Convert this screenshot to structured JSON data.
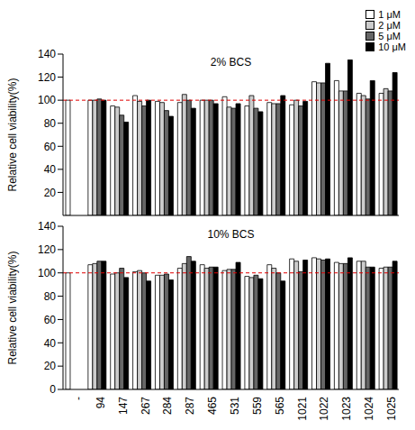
{
  "chart_data": [
    {
      "type": "bar",
      "title": "2% BCS",
      "y_label": "Relative cell viability(%)",
      "categories": [
        "-",
        "94",
        "147",
        "267",
        "284",
        "287",
        "465",
        "531",
        "559",
        "565",
        "1021",
        "1022",
        "1023",
        "1024",
        "1025"
      ],
      "series": [
        {
          "name": "1 μM",
          "color": "#ffffff",
          "values": [
            100,
            100,
            95,
            104,
            99,
            98,
            100,
            103,
            95,
            98,
            96,
            116,
            117,
            106,
            106
          ]
        },
        {
          "name": "2 μM",
          "color": "#cccccc",
          "values": [
            null,
            100,
            94,
            99,
            98,
            105,
            100,
            94,
            104,
            97,
            100,
            115,
            108,
            104,
            110
          ]
        },
        {
          "name": "5 μM",
          "color": "#666666",
          "values": [
            null,
            101,
            87,
            95,
            91,
            100,
            100,
            93,
            93,
            97,
            95,
            115,
            108,
            101,
            108
          ]
        },
        {
          "name": "10 μM",
          "color": "#000000",
          "values": [
            null,
            100,
            81,
            100,
            86,
            93,
            97,
            97,
            90,
            104,
            99,
            132,
            135,
            117,
            124
          ]
        }
      ],
      "ylim": [
        0,
        140
      ],
      "yticks": [
        0,
        20,
        40,
        60,
        80,
        100,
        120,
        140
      ],
      "reference_line": {
        "value": 100,
        "color": "#e00000",
        "line_style": "dashed"
      },
      "legend": "upper right",
      "tick_labels": "y",
      "grid": false
    },
    {
      "type": "bar",
      "title": "10% BCS",
      "y_label": "Relative cell viability(%)",
      "categories": [
        "-",
        "94",
        "147",
        "267",
        "284",
        "287",
        "465",
        "531",
        "559",
        "565",
        "1021",
        "1022",
        "1023",
        "1024",
        "1025"
      ],
      "series": [
        {
          "name": "1 μM",
          "color": "#ffffff",
          "values": [
            100,
            107,
            99,
            101,
            98,
            104,
            107,
            102,
            97,
            107,
            112,
            113,
            109,
            110,
            104
          ]
        },
        {
          "name": "2 μM",
          "color": "#cccccc",
          "values": [
            null,
            108,
            100,
            102,
            98,
            108,
            104,
            103,
            96,
            104,
            110,
            112,
            108,
            110,
            105
          ]
        },
        {
          "name": "5 μM",
          "color": "#666666",
          "values": [
            null,
            110,
            104,
            100,
            99,
            114,
            105,
            103,
            98,
            100,
            101,
            111,
            108,
            105,
            105
          ]
        },
        {
          "name": "10 μM",
          "color": "#000000",
          "values": [
            null,
            110,
            96,
            93,
            94,
            110,
            105,
            109,
            95,
            93,
            111,
            112,
            113,
            105,
            110
          ]
        }
      ],
      "ylim": [
        0,
        140
      ],
      "yticks": [
        0,
        20,
        40,
        60,
        80,
        100,
        120,
        140
      ],
      "reference_line": {
        "value": 100,
        "color": "#e00000",
        "line_style": "dashed"
      },
      "grid": false
    }
  ]
}
